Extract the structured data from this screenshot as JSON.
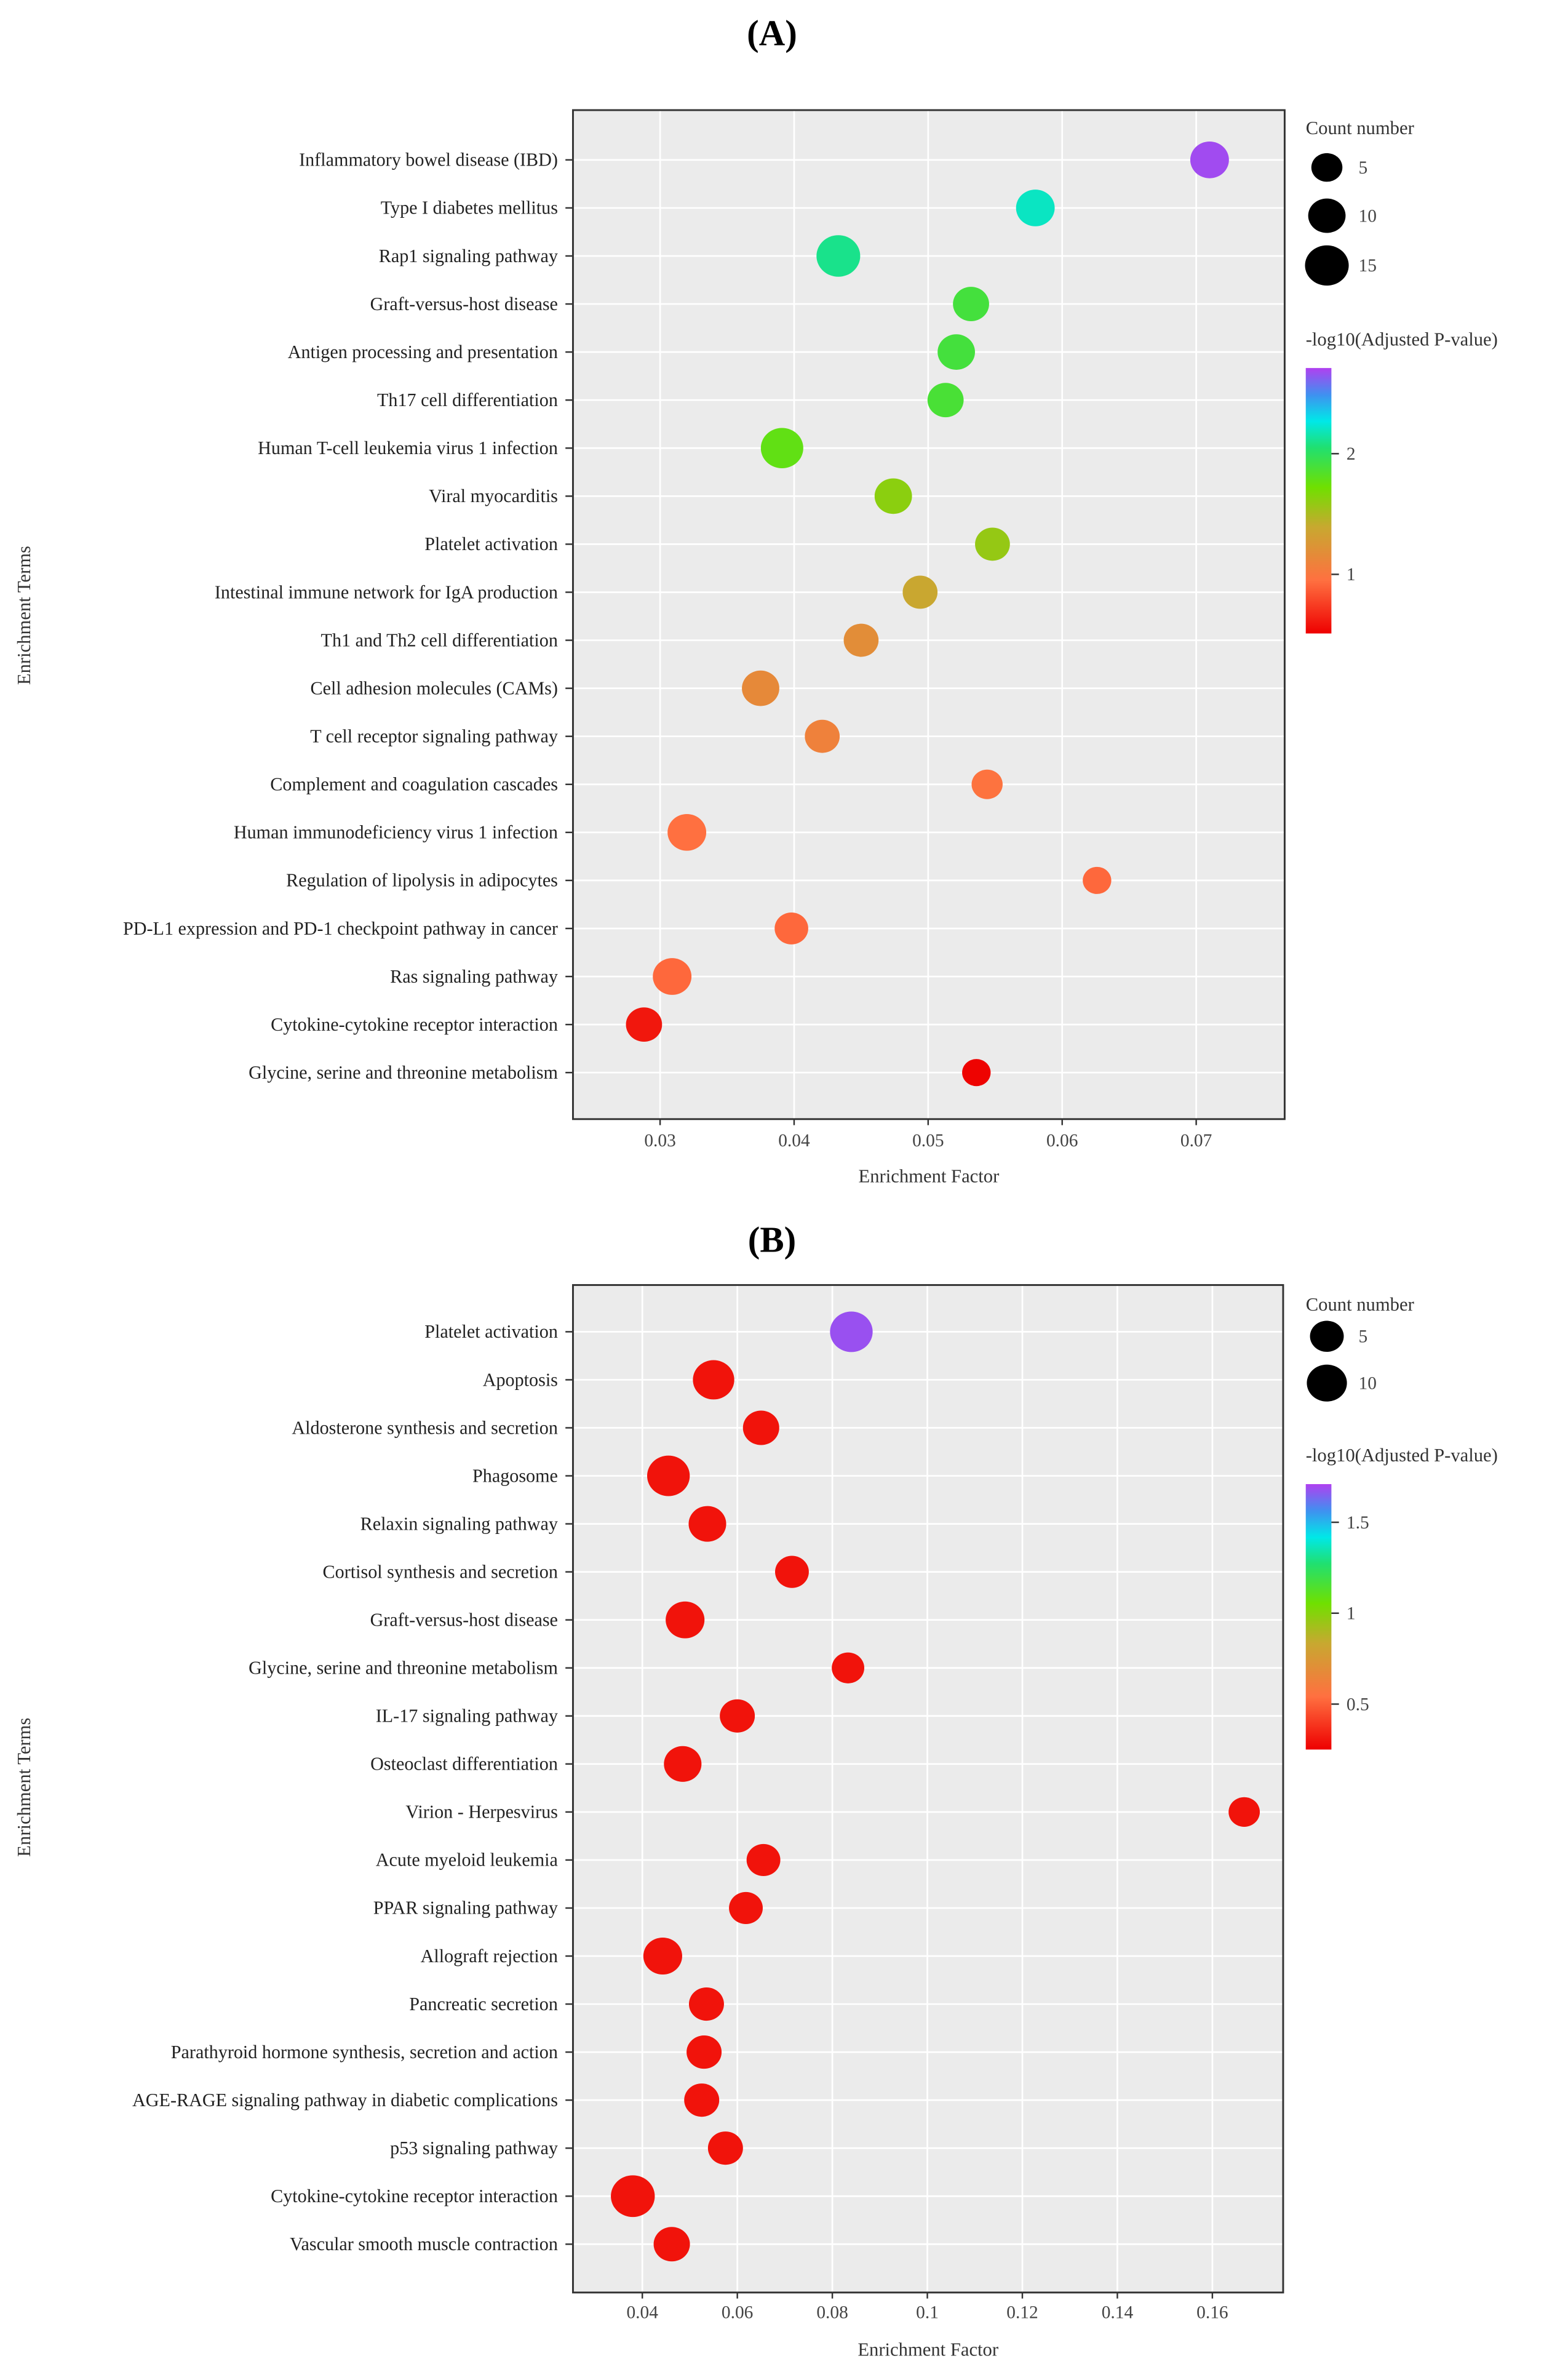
{
  "chart_data": [
    {
      "type": "scatter",
      "panel_label": "(A)",
      "xlabel": "Enrichment Factor",
      "ylabel": "Enrichment Terms",
      "xlim": [
        0.0235,
        0.0766
      ],
      "xticks": [
        0.03,
        0.04,
        0.05,
        0.06,
        0.07
      ],
      "xtick_labels": [
        "0.03",
        "0.04",
        "0.05",
        "0.06",
        "0.07"
      ],
      "grid": true,
      "size_legend": {
        "title": "Count number",
        "values": [
          5,
          10,
          15
        ],
        "labels": [
          "5",
          "10",
          "15"
        ]
      },
      "color_legend": {
        "title": "-log10(Adjusted P-value)",
        "range": [
          0.51,
          2.71
        ],
        "ticks": [
          1,
          2
        ],
        "tick_labels": [
          "1",
          "2"
        ]
      },
      "legend_position": "right",
      "points": [
        {
          "term": "Inflammatory bowel disease (IBD)",
          "x": 0.071,
          "count": 11,
          "neglog10p": 2.68
        },
        {
          "term": "Type I diabetes mellitus",
          "x": 0.058,
          "count": 11,
          "neglog10p": 2.2
        },
        {
          "term": "Rap1 signaling pathway",
          "x": 0.0433,
          "count": 15,
          "neglog10p": 2.1
        },
        {
          "term": "Graft-versus-host disease",
          "x": 0.0532,
          "count": 9,
          "neglog10p": 1.9
        },
        {
          "term": "Antigen processing and presentation",
          "x": 0.0521,
          "count": 10,
          "neglog10p": 1.9
        },
        {
          "term": "Th17 cell differentiation",
          "x": 0.0513,
          "count": 9,
          "neglog10p": 1.88
        },
        {
          "term": "Human T-cell leukemia virus 1 infection",
          "x": 0.0391,
          "count": 14,
          "neglog10p": 1.78
        },
        {
          "term": "Viral myocarditis",
          "x": 0.0474,
          "count": 10,
          "neglog10p": 1.62
        },
        {
          "term": "Platelet activation",
          "x": 0.0548,
          "count": 8,
          "neglog10p": 1.58
        },
        {
          "term": "Intestinal immune network for IgA production",
          "x": 0.0494,
          "count": 8,
          "neglog10p": 1.38
        },
        {
          "term": "Th1 and Th2 cell differentiation",
          "x": 0.045,
          "count": 8,
          "neglog10p": 1.18
        },
        {
          "term": "Cell adhesion molecules (CAMs)",
          "x": 0.0375,
          "count": 10,
          "neglog10p": 1.15
        },
        {
          "term": "T cell receptor signaling pathway",
          "x": 0.0421,
          "count": 8,
          "neglog10p": 1.08
        },
        {
          "term": "Complement and coagulation cascades",
          "x": 0.0544,
          "count": 5,
          "neglog10p": 0.97
        },
        {
          "term": "Human immunodeficiency virus 1 infection",
          "x": 0.032,
          "count": 11,
          "neglog10p": 0.95
        },
        {
          "term": "Regulation of lipolysis in adipocytes",
          "x": 0.0626,
          "count": 3,
          "neglog10p": 0.92
        },
        {
          "term": "PD-L1 expression and PD-1 checkpoint pathway in cancer",
          "x": 0.0398,
          "count": 7,
          "neglog10p": 0.92
        },
        {
          "term": "Ras signaling pathway",
          "x": 0.0309,
          "count": 11,
          "neglog10p": 0.92
        },
        {
          "term": "Cytokine-cytokine receptor interaction",
          "x": 0.0288,
          "count": 9,
          "neglog10p": 0.6
        },
        {
          "term": "Glycine, serine and threonine metabolism",
          "x": 0.0536,
          "count": 3,
          "neglog10p": 0.52
        }
      ]
    },
    {
      "type": "scatter",
      "panel_label": "(B)",
      "xlabel": "Enrichment Factor",
      "ylabel": "Enrichment Terms",
      "xlim": [
        0.0254,
        0.1749
      ],
      "xticks": [
        0.04,
        0.06,
        0.08,
        0.1,
        0.12,
        0.14,
        0.16
      ],
      "xtick_labels": [
        "0.04",
        "0.06",
        "0.08",
        "0.1",
        "0.12",
        "0.14",
        "0.16"
      ],
      "grid": true,
      "size_legend": {
        "title": "Count number",
        "values": [
          5,
          10
        ],
        "labels": [
          "5",
          "10"
        ]
      },
      "color_legend": {
        "title": "-log10(Adjusted P-value)",
        "range": [
          0.25,
          1.71
        ],
        "ticks": [
          0.5,
          1,
          1.5
        ],
        "tick_labels": [
          "0.5",
          "1",
          "1.5"
        ]
      },
      "legend_position": "right",
      "points": [
        {
          "term": "Platelet activation",
          "x": 0.084,
          "count": 12,
          "neglog10p": 1.68
        },
        {
          "term": "Apoptosis",
          "x": 0.055,
          "count": 11,
          "neglog10p": 0.3
        },
        {
          "term": "Aldosterone synthesis and secretion",
          "x": 0.065,
          "count": 7,
          "neglog10p": 0.3
        },
        {
          "term": "Phagosome",
          "x": 0.0455,
          "count": 12,
          "neglog10p": 0.3
        },
        {
          "term": "Relaxin signaling pathway",
          "x": 0.0537,
          "count": 8,
          "neglog10p": 0.3
        },
        {
          "term": "Cortisol synthesis and secretion",
          "x": 0.0715,
          "count": 5,
          "neglog10p": 0.3
        },
        {
          "term": "Graft-versus-host disease",
          "x": 0.049,
          "count": 9,
          "neglog10p": 0.3
        },
        {
          "term": "Glycine, serine and threonine metabolism",
          "x": 0.0833,
          "count": 4,
          "neglog10p": 0.3
        },
        {
          "term": "IL-17 signaling pathway",
          "x": 0.06,
          "count": 6,
          "neglog10p": 0.3
        },
        {
          "term": "Osteoclast differentiation",
          "x": 0.0485,
          "count": 8,
          "neglog10p": 0.3
        },
        {
          "term": "Virion - Herpesvirus",
          "x": 0.1667,
          "count": 3,
          "neglog10p": 0.3
        },
        {
          "term": "Acute myeloid leukemia",
          "x": 0.0655,
          "count": 5,
          "neglog10p": 0.3
        },
        {
          "term": "PPAR signaling pathway",
          "x": 0.0618,
          "count": 5,
          "neglog10p": 0.3
        },
        {
          "term": "Allograft rejection",
          "x": 0.0443,
          "count": 9,
          "neglog10p": 0.3
        },
        {
          "term": "Pancreatic secretion",
          "x": 0.0535,
          "count": 6,
          "neglog10p": 0.3
        },
        {
          "term": "Parathyroid hormone synthesis, secretion and action",
          "x": 0.053,
          "count": 6,
          "neglog10p": 0.3
        },
        {
          "term": "AGE-RAGE signaling pathway in diabetic complications",
          "x": 0.0525,
          "count": 6,
          "neglog10p": 0.3
        },
        {
          "term": "p53 signaling pathway",
          "x": 0.0575,
          "count": 6,
          "neglog10p": 0.3
        },
        {
          "term": "Cytokine-cytokine receptor interaction",
          "x": 0.038,
          "count": 13,
          "neglog10p": 0.3
        },
        {
          "term": "Vascular smooth muscle contraction",
          "x": 0.0462,
          "count": 7,
          "neglog10p": 0.3
        }
      ]
    }
  ]
}
